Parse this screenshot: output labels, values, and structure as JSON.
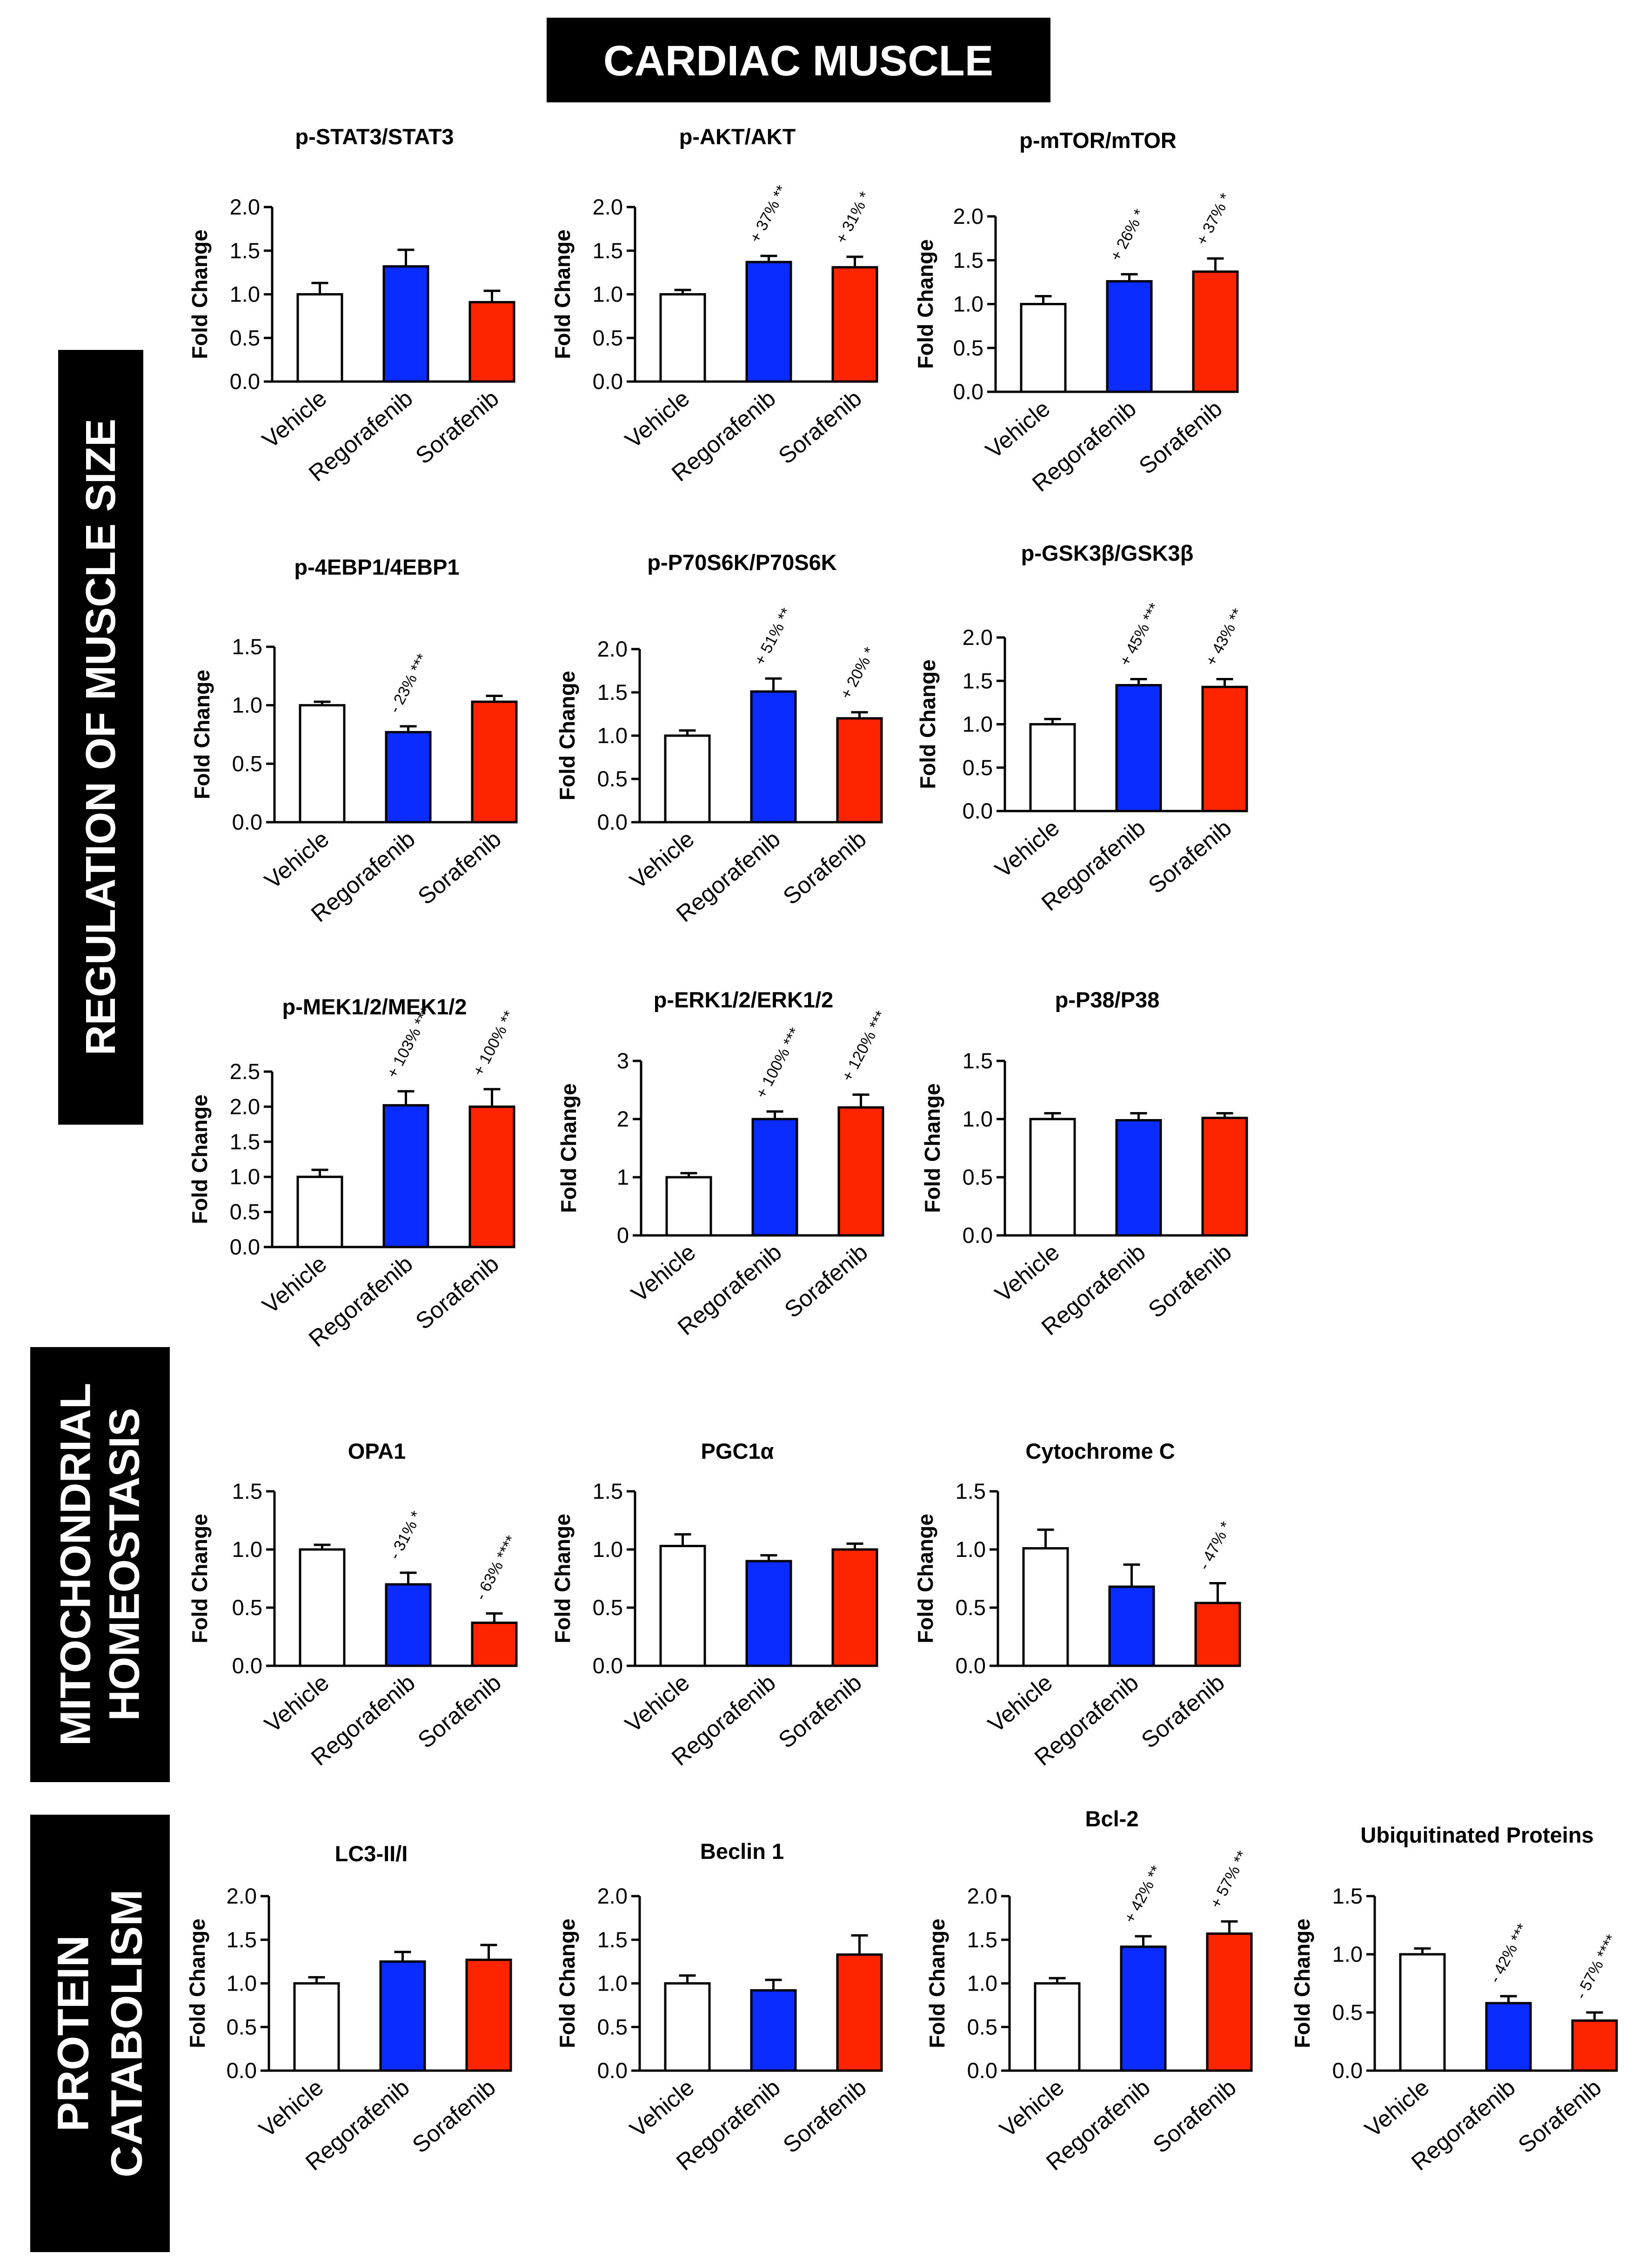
{
  "header": {
    "title": "CARDIAC MUSCLE"
  },
  "sections": [
    {
      "id": "size",
      "lines": [
        "REGULATION OF MUSCLE SIZE"
      ]
    },
    {
      "id": "mito",
      "lines": [
        "MITOCHONDRIAL",
        "HOMEOSTASIS"
      ]
    },
    {
      "id": "cat",
      "lines": [
        "PROTEIN",
        "CATABOLISM"
      ]
    }
  ],
  "colors": {
    "vehicle": "#ffffff",
    "regorafenib": "#0a2cff",
    "sorafenib": "#ff2400",
    "stroke": "#000000",
    "band": "#000000",
    "band_text": "#ffffff"
  },
  "chart_data": [
    {
      "type": "bar",
      "title": "p-STAT3/STAT3",
      "ylabel": "Fold Change",
      "ylim": [
        0,
        2.0
      ],
      "yticks": [
        "0.0",
        "0.5",
        "1.0",
        "1.5",
        "2.0"
      ],
      "categories": [
        "Vehicle",
        "Regorafenib",
        "Sorafenib"
      ],
      "values": [
        1.0,
        1.32,
        0.91
      ],
      "errors": [
        0.13,
        0.19,
        0.13
      ],
      "annotations": [
        "",
        "",
        ""
      ]
    },
    {
      "type": "bar",
      "title": "p-AKT/AKT",
      "ylabel": "Fold Change",
      "ylim": [
        0,
        2.0
      ],
      "yticks": [
        "0.0",
        "0.5",
        "1.0",
        "1.5",
        "2.0"
      ],
      "categories": [
        "Vehicle",
        "Regorafenib",
        "Sorafenib"
      ],
      "values": [
        1.0,
        1.37,
        1.31
      ],
      "errors": [
        0.05,
        0.07,
        0.12
      ],
      "annotations": [
        "",
        "+ 37% **",
        "+ 31% *"
      ]
    },
    {
      "type": "bar",
      "title": "p-mTOR/mTOR",
      "ylabel": "Fold Change",
      "ylim": [
        0,
        2.0
      ],
      "yticks": [
        "0.0",
        "0.5",
        "1.0",
        "1.5",
        "2.0"
      ],
      "categories": [
        "Vehicle",
        "Regorafenib",
        "Sorafenib"
      ],
      "values": [
        1.0,
        1.26,
        1.37
      ],
      "errors": [
        0.09,
        0.08,
        0.15
      ],
      "annotations": [
        "",
        "+ 26% *",
        "+ 37% *"
      ]
    },
    {
      "type": "bar",
      "title": "p-4EBP1/4EBP1",
      "ylabel": "Fold Change",
      "ylim": [
        0,
        1.5
      ],
      "yticks": [
        "0.0",
        "0.5",
        "1.0",
        "1.5"
      ],
      "categories": [
        "Vehicle",
        "Regorafenib",
        "Sorafenib"
      ],
      "values": [
        1.0,
        0.77,
        1.03
      ],
      "errors": [
        0.03,
        0.05,
        0.05
      ],
      "annotations": [
        "",
        "- 23% ***",
        ""
      ]
    },
    {
      "type": "bar",
      "title": "p-P70S6K/P70S6K",
      "ylabel": "Fold Change",
      "ylim": [
        0,
        2.0
      ],
      "yticks": [
        "0.0",
        "0.5",
        "1.0",
        "1.5",
        "2.0"
      ],
      "categories": [
        "Vehicle",
        "Regorafenib",
        "Sorafenib"
      ],
      "values": [
        1.0,
        1.51,
        1.2
      ],
      "errors": [
        0.06,
        0.15,
        0.07
      ],
      "annotations": [
        "",
        "+ 51% **",
        "+ 20% *"
      ]
    },
    {
      "type": "bar",
      "title": "p-GSK3β/GSK3β",
      "ylabel": "Fold Change",
      "ylim": [
        0,
        2.0
      ],
      "yticks": [
        "0.0",
        "0.5",
        "1.0",
        "1.5",
        "2.0"
      ],
      "categories": [
        "Vehicle",
        "Regorafenib",
        "Sorafenib"
      ],
      "values": [
        1.0,
        1.45,
        1.43
      ],
      "errors": [
        0.06,
        0.07,
        0.09
      ],
      "annotations": [
        "",
        "+ 45% ***",
        "+ 43% **"
      ]
    },
    {
      "type": "bar",
      "title": "p-MEK1/2/MEK1/2",
      "ylabel": "Fold Change",
      "ylim": [
        0,
        2.5
      ],
      "yticks": [
        "0.0",
        "0.5",
        "1.0",
        "1.5",
        "2.0",
        "2.5"
      ],
      "categories": [
        "Vehicle",
        "Regorafenib",
        "Sorafenib"
      ],
      "values": [
        1.0,
        2.02,
        2.0
      ],
      "errors": [
        0.1,
        0.2,
        0.25
      ],
      "annotations": [
        "",
        "+ 103% ***",
        "+ 100% **"
      ]
    },
    {
      "type": "bar",
      "title": "p-ERK1/2/ERK1/2",
      "ylabel": "Fold Change",
      "ylim": [
        0,
        3
      ],
      "yticks": [
        "0",
        "1",
        "2",
        "3"
      ],
      "categories": [
        "Vehicle",
        "Regorafenib",
        "Sorafenib"
      ],
      "values": [
        1.0,
        2.0,
        2.2
      ],
      "errors": [
        0.07,
        0.13,
        0.22
      ],
      "annotations": [
        "",
        "+ 100% ***",
        "+ 120% ***"
      ]
    },
    {
      "type": "bar",
      "title": "p-P38/P38",
      "ylabel": "Fold Change",
      "ylim": [
        0,
        1.5
      ],
      "yticks": [
        "0.0",
        "0.5",
        "1.0",
        "1.5"
      ],
      "categories": [
        "Vehicle",
        "Regorafenib",
        "Sorafenib"
      ],
      "values": [
        1.0,
        0.99,
        1.01
      ],
      "errors": [
        0.05,
        0.06,
        0.04
      ],
      "annotations": [
        "",
        "",
        ""
      ]
    },
    {
      "type": "bar",
      "title": "OPA1",
      "ylabel": "Fold Change",
      "ylim": [
        0,
        1.5
      ],
      "yticks": [
        "0.0",
        "0.5",
        "1.0",
        "1.5"
      ],
      "categories": [
        "Vehicle",
        "Regorafenib",
        "Sorafenib"
      ],
      "values": [
        1.0,
        0.7,
        0.37
      ],
      "errors": [
        0.04,
        0.1,
        0.08
      ],
      "annotations": [
        "",
        "- 31% *",
        "- 63% ****"
      ]
    },
    {
      "type": "bar",
      "title": "PGC1α",
      "ylabel": "Fold Change",
      "ylim": [
        0,
        1.5
      ],
      "yticks": [
        "0.0",
        "0.5",
        "1.0",
        "1.5"
      ],
      "categories": [
        "Vehicle",
        "Regorafenib",
        "Sorafenib"
      ],
      "values": [
        1.03,
        0.9,
        1.0
      ],
      "errors": [
        0.1,
        0.05,
        0.05
      ],
      "annotations": [
        "",
        "",
        ""
      ]
    },
    {
      "type": "bar",
      "title": "Cytochrome C",
      "ylabel": "Fold Change",
      "ylim": [
        0,
        1.5
      ],
      "yticks": [
        "0.0",
        "0.5",
        "1.0",
        "1.5"
      ],
      "categories": [
        "Vehicle",
        "Regorafenib",
        "Sorafenib"
      ],
      "values": [
        1.01,
        0.68,
        0.54
      ],
      "errors": [
        0.16,
        0.19,
        0.17
      ],
      "annotations": [
        "",
        "",
        "- 47% *"
      ]
    },
    {
      "type": "bar",
      "title": "LC3-II/I",
      "ylabel": "Fold Change",
      "ylim": [
        0,
        2.0
      ],
      "yticks": [
        "0.0",
        "0.5",
        "1.0",
        "1.5",
        "2.0"
      ],
      "categories": [
        "Vehicle",
        "Regorafenib",
        "Sorafenib"
      ],
      "values": [
        1.0,
        1.25,
        1.27
      ],
      "errors": [
        0.07,
        0.11,
        0.17
      ],
      "annotations": [
        "",
        "",
        ""
      ]
    },
    {
      "type": "bar",
      "title": "Beclin 1",
      "ylabel": "Fold Change",
      "ylim": [
        0,
        2.0
      ],
      "yticks": [
        "0.0",
        "0.5",
        "1.0",
        "1.5",
        "2.0"
      ],
      "categories": [
        "Vehicle",
        "Regorafenib",
        "Sorafenib"
      ],
      "values": [
        1.0,
        0.92,
        1.33
      ],
      "errors": [
        0.09,
        0.12,
        0.22
      ],
      "annotations": [
        "",
        "",
        ""
      ]
    },
    {
      "type": "bar",
      "title": "Bcl-2",
      "ylabel": "Fold Change",
      "ylim": [
        0,
        2.0
      ],
      "yticks": [
        "0.0",
        "0.5",
        "1.0",
        "1.5",
        "2.0"
      ],
      "categories": [
        "Vehicle",
        "Regorafenib",
        "Sorafenib"
      ],
      "values": [
        1.0,
        1.42,
        1.57
      ],
      "errors": [
        0.06,
        0.12,
        0.14
      ],
      "annotations": [
        "",
        "+ 42% **",
        "+ 57% **"
      ]
    },
    {
      "type": "bar",
      "title": "Ubiquitinated Proteins",
      "ylabel": "Fold Change",
      "ylim": [
        0,
        1.5
      ],
      "yticks": [
        "0.0",
        "0.5",
        "1.0",
        "1.5"
      ],
      "categories": [
        "Vehicle",
        "Regorafenib",
        "Sorafenib"
      ],
      "values": [
        1.0,
        0.58,
        0.43
      ],
      "errors": [
        0.05,
        0.06,
        0.07
      ],
      "annotations": [
        "",
        "- 42% ***",
        "- 57% ****"
      ]
    }
  ]
}
